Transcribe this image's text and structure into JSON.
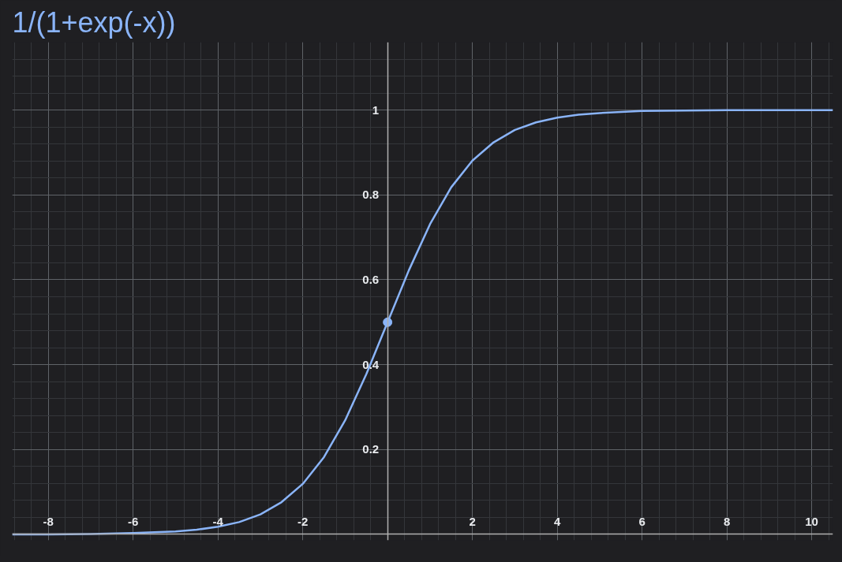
{
  "chart_data": {
    "type": "line",
    "title": "1/(1+exp(-x))",
    "x": [
      -8.85,
      -8,
      -7,
      -6,
      -5,
      -4.5,
      -4,
      -3.5,
      -3,
      -2.5,
      -2,
      -1.5,
      -1,
      -0.5,
      0,
      0.5,
      1,
      1.5,
      2,
      2.5,
      3,
      3.5,
      4,
      4.5,
      5,
      6,
      7,
      8,
      9,
      10.5
    ],
    "series": [
      {
        "color": "#8ab4f8",
        "values": [
          0,
          0,
          0.001,
          0.003,
          0.007,
          0.011,
          0.018,
          0.029,
          0.047,
          0.076,
          0.119,
          0.182,
          0.269,
          0.378,
          0.5,
          0.622,
          0.731,
          0.818,
          0.881,
          0.924,
          0.953,
          0.971,
          0.982,
          0.989,
          0.993,
          0.998,
          0.999,
          1.0,
          1.0,
          1.0
        ]
      },
      {
        "type": "scatter",
        "color": "#8ab4f8",
        "x": [
          0
        ],
        "values": [
          0.5
        ],
        "marker": "circle"
      }
    ],
    "xlim": [
      -8.85,
      10.5
    ],
    "ylim": [
      -0.014,
      1.16
    ],
    "xticks": [
      -8,
      -6,
      -4,
      -2,
      2,
      4,
      6,
      8,
      10
    ],
    "yticks": [
      0.2,
      0.4,
      0.6,
      0.8,
      1
    ],
    "grid": true,
    "marker": "none",
    "line_style": "solid"
  }
}
